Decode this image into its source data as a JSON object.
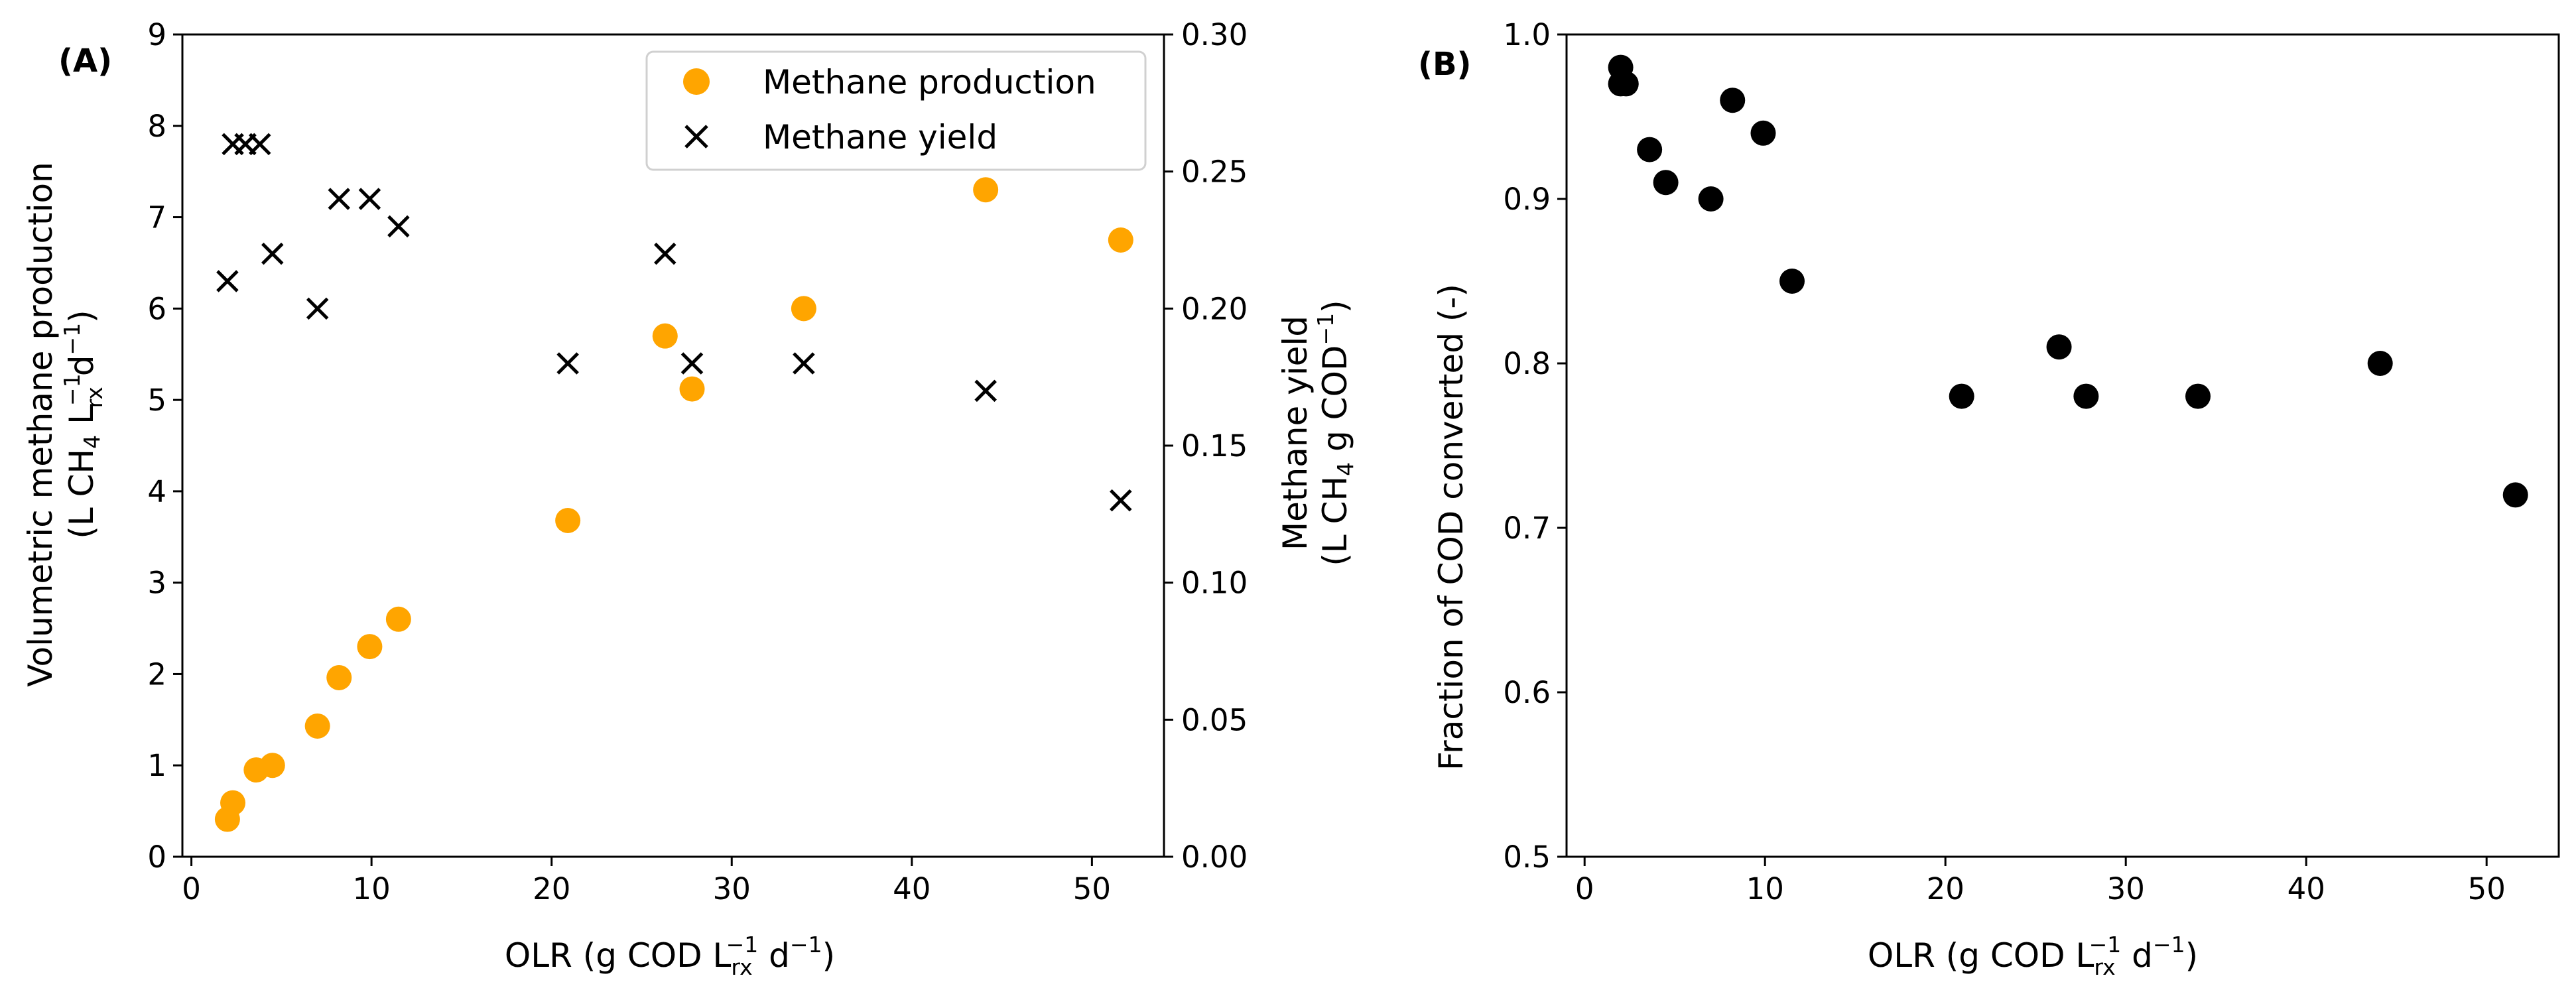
{
  "colors": {
    "production": "#FFA500",
    "yield": "#000000",
    "conversion": "#000000",
    "axis": "#000000",
    "legend_border": "#d0d0d0"
  },
  "chart_data": [
    {
      "panel": "(A)",
      "type": "scatter",
      "xlabel": {
        "main": "OLR (g COD L",
        "sub": "rx",
        "sup": "−1",
        "tail": " d",
        "sup2": "−1",
        "end": ")"
      },
      "xlim": [
        -0.5,
        54
      ],
      "xticks": [
        0,
        10,
        20,
        30,
        40,
        50
      ],
      "x": [
        2.0,
        2.3,
        3.6,
        4.5,
        7.0,
        8.2,
        9.9,
        11.5,
        20.9,
        26.3,
        27.8,
        34.0,
        44.1,
        51.6
      ],
      "left_axis": {
        "label_line1": "Volumetric methane production",
        "label_line2": {
          "a": "(L CH",
          "b": "4",
          "c": " L",
          "d": "−1",
          "e": "rx",
          "f": " d",
          "g": "−1",
          "h": ")"
        },
        "ylim": [
          0,
          9
        ],
        "yticks": [
          0,
          1,
          2,
          3,
          4,
          5,
          6,
          7,
          8,
          9
        ]
      },
      "right_axis": {
        "label_line1": "Methane yield",
        "label_line2": {
          "a": "(L CH",
          "b": "4",
          "c": " g COD",
          "d": "−1",
          "e": ")"
        },
        "ylim": [
          0.0,
          0.3
        ],
        "yticks": [
          "0.00",
          "0.05",
          "0.10",
          "0.15",
          "0.20",
          "0.25",
          "0.30"
        ]
      },
      "series": [
        {
          "name": "Methane production",
          "axis": "left",
          "marker": "circle",
          "x": [
            2.0,
            2.3,
            3.6,
            4.5,
            7.0,
            8.2,
            9.9,
            11.5,
            20.9,
            26.3,
            27.8,
            34.0,
            44.1,
            51.6
          ],
          "values": [
            0.41,
            0.59,
            0.95,
            1.0,
            1.43,
            1.96,
            2.3,
            2.6,
            3.68,
            5.7,
            5.12,
            6.0,
            7.3,
            6.75
          ]
        },
        {
          "name": "Methane yield",
          "axis": "right",
          "marker": "x",
          "x": [
            2.0,
            2.3,
            3.0,
            3.8,
            4.5,
            7.0,
            8.2,
            9.9,
            11.5,
            20.9,
            26.3,
            27.8,
            34.0,
            44.1,
            51.6
          ],
          "values": [
            0.21,
            0.26,
            0.26,
            0.26,
            0.22,
            0.2,
            0.24,
            0.24,
            0.23,
            0.18,
            0.22,
            0.18,
            0.18,
            0.17,
            0.13
          ]
        }
      ],
      "legend": {
        "position": "top-right",
        "entries": [
          "Methane production",
          "Methane yield"
        ]
      }
    },
    {
      "panel": "(B)",
      "type": "scatter",
      "xlabel": {
        "main": "OLR (g COD L",
        "sub": "rx",
        "sup": "−1",
        "tail": " d",
        "sup2": "−1",
        "end": ")"
      },
      "ylabel": "Fraction of COD converted (-)",
      "xlim": [
        -1,
        54
      ],
      "ylim": [
        0.5,
        1.0
      ],
      "xticks": [
        0,
        10,
        20,
        30,
        40,
        50
      ],
      "yticks": [
        "0.5",
        "0.6",
        "0.7",
        "0.8",
        "0.9",
        "1.0"
      ],
      "series": [
        {
          "name": "Fraction of COD converted",
          "marker": "circle",
          "x": [
            2.0,
            2.0,
            2.3,
            3.6,
            4.5,
            7.0,
            8.2,
            9.9,
            11.5,
            20.9,
            26.3,
            27.8,
            34.0,
            44.1,
            51.6
          ],
          "values": [
            0.97,
            0.98,
            0.97,
            0.93,
            0.91,
            0.9,
            0.96,
            0.94,
            0.85,
            0.78,
            0.81,
            0.78,
            0.78,
            0.8,
            0.72
          ]
        }
      ]
    }
  ]
}
